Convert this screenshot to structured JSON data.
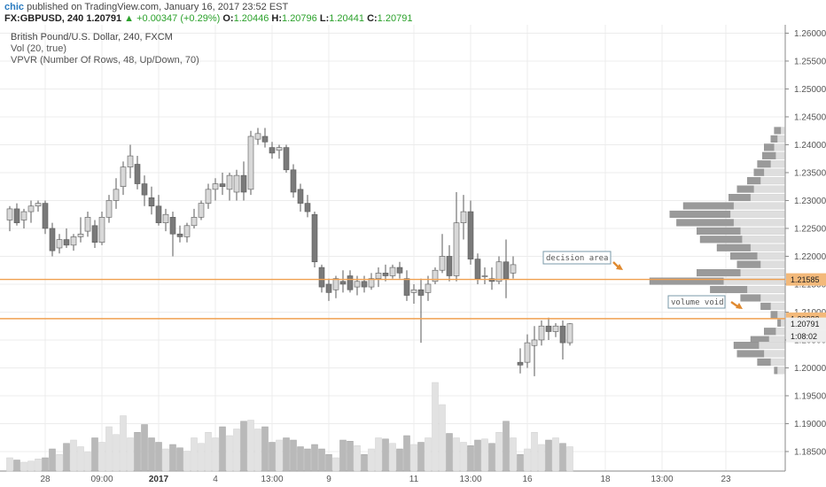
{
  "header": {
    "author": "chic",
    "published_text": "published on TradingView.com, January 16, 2017 23:52 EST",
    "symbol": "FX:GBPUSD, 240",
    "last": "1.20791",
    "change": "+0.00347 (+0.29%)",
    "o_label": "O:",
    "o_val": "1.20446",
    "h_label": "H:",
    "h_val": "1.20796",
    "l_label": "L:",
    "l_val": "1.20441",
    "c_label": "C:",
    "c_val": "1.20791"
  },
  "legend": {
    "title": "British Pound/U.S. Dollar, 240, FXCM",
    "vol": "Vol (20, true)",
    "vpvr": "VPVR (Number Of Rows, 48, Up/Down, 70)"
  },
  "colors": {
    "bull": "#d8d8d8",
    "bear": "#7a7a7a",
    "level_line": "#f0a050",
    "price_tag": "#f3b97a",
    "arrow": "#e08a30"
  },
  "chart_data": {
    "type": "candlestick",
    "ylim": [
      1.1815,
      1.2615
    ],
    "y_ticks": [
      "1.18500",
      "1.19000",
      "1.19500",
      "1.20000",
      "1.20500",
      "1.21000",
      "1.21500",
      "1.22000",
      "1.22500",
      "1.23000",
      "1.23500",
      "1.24000",
      "1.24500",
      "1.25000",
      "1.25500",
      "1.26000"
    ],
    "x_ticks": [
      "28",
      "09:00",
      "2017",
      "4",
      "13:00",
      "9",
      "11",
      "13:00",
      "16",
      "18",
      "13:00",
      "23"
    ],
    "ohlc": [
      [
        1.2265,
        1.229,
        1.2245,
        1.2285
      ],
      [
        1.2285,
        1.2295,
        1.2255,
        1.226
      ],
      [
        1.2265,
        1.2285,
        1.225,
        1.228
      ],
      [
        1.228,
        1.23,
        1.226,
        1.229
      ],
      [
        1.229,
        1.23,
        1.228,
        1.2295
      ],
      [
        1.2295,
        1.23,
        1.224,
        1.225
      ],
      [
        1.225,
        1.226,
        1.22,
        1.221
      ],
      [
        1.2215,
        1.224,
        1.2205,
        1.223
      ],
      [
        1.223,
        1.225,
        1.2215,
        1.222
      ],
      [
        1.222,
        1.224,
        1.221,
        1.2235
      ],
      [
        1.2235,
        1.227,
        1.2225,
        1.224
      ],
      [
        1.2245,
        1.228,
        1.2235,
        1.227
      ],
      [
        1.2255,
        1.2265,
        1.2215,
        1.2225
      ],
      [
        1.2225,
        1.228,
        1.222,
        1.227
      ],
      [
        1.227,
        1.231,
        1.226,
        1.23
      ],
      [
        1.23,
        1.234,
        1.2285,
        1.232
      ],
      [
        1.2325,
        1.237,
        1.231,
        1.236
      ],
      [
        1.236,
        1.24,
        1.234,
        1.238
      ],
      [
        1.2365,
        1.238,
        1.232,
        1.233
      ],
      [
        1.233,
        1.2345,
        1.229,
        1.231
      ],
      [
        1.2305,
        1.2325,
        1.2275,
        1.229
      ],
      [
        1.229,
        1.231,
        1.2255,
        1.226
      ],
      [
        1.226,
        1.2285,
        1.2245,
        1.2275
      ],
      [
        1.227,
        1.228,
        1.22,
        1.224
      ],
      [
        1.224,
        1.2255,
        1.2225,
        1.2235
      ],
      [
        1.2235,
        1.226,
        1.2225,
        1.2255
      ],
      [
        1.2255,
        1.2285,
        1.225,
        1.227
      ],
      [
        1.227,
        1.23,
        1.2265,
        1.2295
      ],
      [
        1.2295,
        1.233,
        1.2285,
        1.232
      ],
      [
        1.232,
        1.234,
        1.23,
        1.233
      ],
      [
        1.233,
        1.235,
        1.231,
        1.2325
      ],
      [
        1.232,
        1.235,
        1.23,
        1.2345
      ],
      [
        1.2315,
        1.2355,
        1.23,
        1.2345
      ],
      [
        1.2345,
        1.237,
        1.23,
        1.2315
      ],
      [
        1.232,
        1.2425,
        1.231,
        1.2415
      ],
      [
        1.241,
        1.243,
        1.24,
        1.242
      ],
      [
        1.2415,
        1.243,
        1.2395,
        1.2405
      ],
      [
        1.2395,
        1.2405,
        1.2375,
        1.2385
      ],
      [
        1.239,
        1.24,
        1.2375,
        1.2395
      ],
      [
        1.2395,
        1.24,
        1.235,
        1.2355
      ],
      [
        1.2355,
        1.2365,
        1.2305,
        1.2315
      ],
      [
        1.232,
        1.233,
        1.228,
        1.2295
      ],
      [
        1.2295,
        1.231,
        1.227,
        1.228
      ],
      [
        1.2275,
        1.228,
        1.218,
        1.219
      ],
      [
        1.218,
        1.2185,
        1.2135,
        1.2145
      ],
      [
        1.215,
        1.216,
        1.212,
        1.2135
      ],
      [
        1.214,
        1.2165,
        1.2125,
        1.216
      ],
      [
        1.2155,
        1.2175,
        1.2135,
        1.215
      ],
      [
        1.2165,
        1.2175,
        1.2135,
        1.214
      ],
      [
        1.2145,
        1.2165,
        1.213,
        1.2155
      ],
      [
        1.2155,
        1.2165,
        1.2135,
        1.2145
      ],
      [
        1.2145,
        1.217,
        1.214,
        1.216
      ],
      [
        1.216,
        1.218,
        1.2145,
        1.217
      ],
      [
        1.217,
        1.2185,
        1.2155,
        1.2165
      ],
      [
        1.2165,
        1.2185,
        1.216,
        1.218
      ],
      [
        1.218,
        1.219,
        1.216,
        1.217
      ],
      [
        1.216,
        1.2175,
        1.212,
        1.213
      ],
      [
        1.2135,
        1.215,
        1.2115,
        1.214
      ],
      [
        1.214,
        1.216,
        1.2045,
        1.213
      ],
      [
        1.2135,
        1.2165,
        1.212,
        1.215
      ],
      [
        1.2155,
        1.218,
        1.215,
        1.2175
      ],
      [
        1.2175,
        1.224,
        1.217,
        1.22
      ],
      [
        1.22,
        1.222,
        1.2155,
        1.2165
      ],
      [
        1.2165,
        1.2315,
        1.2155,
        1.226
      ],
      [
        1.226,
        1.231,
        1.223,
        1.228
      ],
      [
        1.228,
        1.23,
        1.2185,
        1.2195
      ],
      [
        1.2195,
        1.2205,
        1.215,
        1.216
      ],
      [
        1.2165,
        1.218,
        1.215,
        1.2165
      ],
      [
        1.216,
        1.218,
        1.214,
        1.2155
      ],
      [
        1.2155,
        1.22,
        1.215,
        1.219
      ],
      [
        1.219,
        1.223,
        1.2125,
        1.216
      ],
      [
        1.217,
        1.22,
        1.216,
        1.2185
      ],
      [
        1.201,
        1.2035,
        1.199,
        1.2005
      ],
      [
        1.201,
        1.206,
        1.2,
        1.2045
      ],
      [
        1.204,
        1.2075,
        1.1985,
        1.205
      ],
      [
        1.205,
        1.2085,
        1.204,
        1.2075
      ],
      [
        1.2075,
        1.209,
        1.205,
        1.2065
      ],
      [
        1.2065,
        1.208,
        1.2055,
        1.2075
      ],
      [
        1.2075,
        1.2085,
        1.2015,
        1.2045
      ],
      [
        1.2045,
        1.208,
        1.204,
        1.2079
      ]
    ],
    "volume_max": 8,
    "volume": [
      1.2,
      1.0,
      0.8,
      0.9,
      1.1,
      1.2,
      2.0,
      1.5,
      2.5,
      2.8,
      2.2,
      1.7,
      3.0,
      2.6,
      4.0,
      3.3,
      5.0,
      3.0,
      3.5,
      4.2,
      3.0,
      2.6,
      2.0,
      2.4,
      2.1,
      1.8,
      3.0,
      2.5,
      3.5,
      3.0,
      4.0,
      3.2,
      3.8,
      4.5,
      4.6,
      3.8,
      4.0,
      2.6,
      2.8,
      3.0,
      2.8,
      2.2,
      2.0,
      2.4,
      2.0,
      1.5,
      1.2,
      2.8,
      2.7,
      2.3,
      1.5,
      2.0,
      3.0,
      2.9,
      2.5,
      2.0,
      3.2,
      2.4,
      2.6,
      3.0,
      8.0,
      6.0,
      3.4,
      3.0,
      2.6,
      2.3,
      2.8,
      2.9,
      2.5,
      3.5,
      4.5,
      3.0,
      1.5,
      2.0,
      3.5,
      2.4,
      2.8,
      3.0,
      2.5,
      2.2
    ],
    "vpvr_profile": [
      [
        1.2425,
        2,
        6
      ],
      [
        1.241,
        4,
        8
      ],
      [
        1.2395,
        6,
        12
      ],
      [
        1.238,
        5,
        13
      ],
      [
        1.2365,
        8,
        16
      ],
      [
        1.235,
        12,
        18
      ],
      [
        1.2335,
        14,
        22
      ],
      [
        1.232,
        18,
        28
      ],
      [
        1.2305,
        20,
        33
      ],
      [
        1.229,
        30,
        60
      ],
      [
        1.2275,
        32,
        68
      ],
      [
        1.226,
        30,
        64
      ],
      [
        1.2245,
        26,
        52
      ],
      [
        1.223,
        25,
        50
      ],
      [
        1.2215,
        20,
        40
      ],
      [
        1.22,
        16,
        32
      ],
      [
        1.2185,
        14,
        28
      ],
      [
        1.217,
        26,
        52
      ],
      [
        1.2155,
        36,
        80
      ],
      [
        1.214,
        22,
        44
      ],
      [
        1.2125,
        14,
        26
      ],
      [
        1.211,
        8,
        14
      ],
      [
        1.2095,
        4,
        8
      ],
      [
        1.208,
        2,
        4
      ],
      [
        1.2065,
        5,
        12
      ],
      [
        1.205,
        9,
        20
      ],
      [
        1.204,
        15,
        30
      ],
      [
        1.2025,
        12,
        28
      ],
      [
        1.201,
        8,
        16
      ],
      [
        1.1995,
        4,
        6
      ]
    ],
    "levels": [
      {
        "price": 1.21585,
        "label": "1.21585"
      },
      {
        "price": 1.20882,
        "label": "1.20882"
      }
    ],
    "last_price_label": "1.20791",
    "countdown_label": "1:08:02",
    "annotations": [
      {
        "text": "decision area"
      },
      {
        "text": "volume void"
      }
    ]
  }
}
